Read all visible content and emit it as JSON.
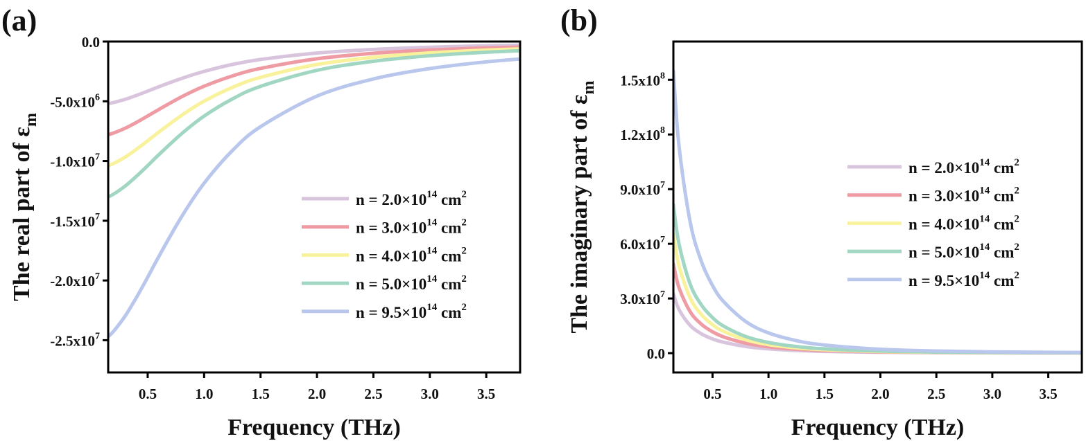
{
  "chart_data": [
    {
      "type": "line",
      "panel_label": "(a)",
      "xlabel": "Frequency (THz)",
      "ylabel": {
        "text": "The real part of ε",
        "sub": "m"
      },
      "xlim": [
        0.15,
        3.8
      ],
      "ylim": [
        -27700000.0,
        0
      ],
      "xticks": [
        {
          "v": 0.5,
          "t": "0.5"
        },
        {
          "v": 1.0,
          "t": "1.0"
        },
        {
          "v": 1.5,
          "t": "1.5"
        },
        {
          "v": 2.0,
          "t": "2.0"
        },
        {
          "v": 2.5,
          "t": "2.5"
        },
        {
          "v": 3.0,
          "t": "3.0"
        },
        {
          "v": 3.5,
          "t": "3.5"
        }
      ],
      "yticks": [
        {
          "v": 0,
          "t": "0.0",
          "sup": ""
        },
        {
          "v": -5000000.0,
          "t": "-5.0x10",
          "sup": "6"
        },
        {
          "v": -10000000.0,
          "t": "-1.0x10",
          "sup": "7"
        },
        {
          "v": -15000000.0,
          "t": "-1.5x10",
          "sup": "7"
        },
        {
          "v": -20000000.0,
          "t": "-2.0x10",
          "sup": "7"
        },
        {
          "v": -25000000.0,
          "t": "-2.5x10",
          "sup": "7"
        }
      ],
      "grid": false,
      "legend_position": "center-right",
      "x": [
        0.15,
        0.2,
        0.3,
        0.4,
        0.5,
        0.6,
        0.8,
        1.0,
        1.25,
        1.5,
        2.0,
        2.5,
        3.0,
        3.5,
        3.8
      ],
      "series": [
        {
          "name": {
            "pre": "n = 2.0×10",
            "sup1": "14",
            "mid": " cm",
            "sup2": "2"
          },
          "color": "#d9c4de",
          "values": [
            -5200000.0,
            -5100000.0,
            -4840000.0,
            -4510000.0,
            -4150000.0,
            -3780000.0,
            -3090000.0,
            -2500000.0,
            -1920000.0,
            -1500000.0,
            -962000.0,
            -658000.0,
            -475000.0,
            -357000.0,
            -306000.0
          ]
        },
        {
          "name": {
            "pre": "n = 3.0×10",
            "sup1": "14",
            "mid": " cm",
            "sup2": "2"
          },
          "color": "#ee9ba4",
          "values": [
            -7800000.0,
            -7650000.0,
            -7260000.0,
            -6770000.0,
            -6230000.0,
            -5680000.0,
            -4630000.0,
            -3740000.0,
            -2880000.0,
            -2250000.0,
            -1440000.0,
            -987000.0,
            -713000.0,
            -536000.0,
            -460000.0
          ]
        },
        {
          "name": {
            "pre": "n = 4.0×10",
            "sup1": "14",
            "mid": " cm",
            "sup2": "2"
          },
          "color": "#f9f29c",
          "values": [
            -10400000.0,
            -10200000.0,
            -9680000.0,
            -9020000.0,
            -8310000.0,
            -7570000.0,
            -6180000.0,
            -4990000.0,
            -3840000.0,
            -3000000.0,
            -1920000.0,
            -1320000.0,
            -950000.0,
            -715000.0,
            -613000.0
          ]
        },
        {
          "name": {
            "pre": "n = 5.0×10",
            "sup1": "14",
            "mid": " cm",
            "sup2": "2"
          },
          "color": "#a1d7c2",
          "values": [
            -13000000.0,
            -12760000.0,
            -12100000.0,
            -11280000.0,
            -10390000.0,
            -9460000.0,
            -7720000.0,
            -6240000.0,
            -4810000.0,
            -3750000.0,
            -2410000.0,
            -1650000.0,
            -1190000.0,
            -894000.0,
            -766000.0
          ]
        },
        {
          "name": {
            "pre": "n = 9.5×10",
            "sup1": "14",
            "mid": " cm",
            "sup2": "2"
          },
          "color": "#b9c7ed",
          "values": [
            -24700000.0,
            -24230000.0,
            -22980000.0,
            -21430000.0,
            -19730000.0,
            -17970000.0,
            -14670000.0,
            -11860000.0,
            -9130000.0,
            -7130000.0,
            -4570000.0,
            -3130000.0,
            -2260000.0,
            -1700000.0,
            -1460000.0
          ]
        }
      ]
    },
    {
      "type": "line",
      "panel_label": "(b)",
      "xlabel": "Frequency (THz)",
      "ylabel": {
        "text": "The imaginary part of ε",
        "sub": "m"
      },
      "xlim": [
        0.15,
        3.8
      ],
      "ylim": [
        -10600000.0,
        171000000.0
      ],
      "xticks": [
        {
          "v": 0.5,
          "t": "0.5"
        },
        {
          "v": 1.0,
          "t": "1.0"
        },
        {
          "v": 1.5,
          "t": "1.5"
        },
        {
          "v": 2.0,
          "t": "2.0"
        },
        {
          "v": 2.5,
          "t": "2.5"
        },
        {
          "v": 3.0,
          "t": "3.0"
        },
        {
          "v": 3.5,
          "t": "3.5"
        }
      ],
      "yticks": [
        {
          "v": 0,
          "t": "0.0",
          "sup": ""
        },
        {
          "v": 30000000.0,
          "t": "3.0x10",
          "sup": "7"
        },
        {
          "v": 60000000.0,
          "t": "6.0x10",
          "sup": "7"
        },
        {
          "v": 90000000.0,
          "t": "9.0x10",
          "sup": "7"
        },
        {
          "v": 120000000.0,
          "t": "1.2x10",
          "sup": "8"
        },
        {
          "v": 150000000.0,
          "t": "1.5x10",
          "sup": "8"
        }
      ],
      "grid": false,
      "legend_position": "center-right",
      "x": [
        0.15,
        0.2,
        0.3,
        0.4,
        0.5,
        0.6,
        0.8,
        1.0,
        1.25,
        1.5,
        2.0,
        2.5,
        3.0,
        3.5,
        3.8
      ],
      "series": [
        {
          "name": {
            "pre": "n = 2.0×10",
            "sup1": "14",
            "mid": " cm",
            "sup2": "2"
          },
          "color": "#d9c4de",
          "values": [
            32600000.0,
            24000000.0,
            15200000.0,
            10600000.0,
            7810000.0,
            5930000.0,
            3630000.0,
            2350000.0,
            1450000.0,
            940000.0,
            452000.0,
            247000.0,
            149000.0,
            96000.0,
            76000.0
          ]
        },
        {
          "name": {
            "pre": "n = 3.0×10",
            "sup1": "14",
            "mid": " cm",
            "sup2": "2"
          },
          "color": "#ee9ba4",
          "values": [
            48900000.0,
            36000000.0,
            22700000.0,
            15900000.0,
            11700000.0,
            8890000.0,
            5440000.0,
            3520000.0,
            2170000.0,
            1410000.0,
            678000.0,
            371000.0,
            223000.0,
            144000.0,
            114000.0
          ]
        },
        {
          "name": {
            "pre": "n = 4.0×10",
            "sup1": "14",
            "mid": " cm",
            "sup2": "2"
          },
          "color": "#f9f29c",
          "values": [
            65200000.0,
            48000000.0,
            30300000.0,
            21200000.0,
            15600000.0,
            11900000.0,
            7260000.0,
            4690000.0,
            2890000.0,
            1880000.0,
            904000.0,
            495000.0,
            298000.0,
            192000.0,
            152000.0
          ]
        },
        {
          "name": {
            "pre": "n = 5.0×10",
            "sup1": "14",
            "mid": " cm",
            "sup2": "2"
          },
          "color": "#a1d7c2",
          "values": [
            81500000.0,
            60000000.0,
            37900000.0,
            26500000.0,
            19500000.0,
            14800000.0,
            9070000.0,
            5870000.0,
            3620000.0,
            2350000.0,
            1130000.0,
            619000.0,
            372000.0,
            240000.0,
            190000.0
          ]
        },
        {
          "name": {
            "pre": "n = 9.5×10",
            "sup1": "14",
            "mid": " cm",
            "sup2": "2"
          },
          "color": "#b9c7ed",
          "values": [
            154800000.0,
            113900000.0,
            72000000.0,
            50400000.0,
            37100000.0,
            28200000.0,
            17200000.0,
            11100000.0,
            6870000.0,
            4470000.0,
            2150000.0,
            1180000.0,
            707000.0,
            456000.0,
            360000.0
          ]
        }
      ]
    }
  ]
}
